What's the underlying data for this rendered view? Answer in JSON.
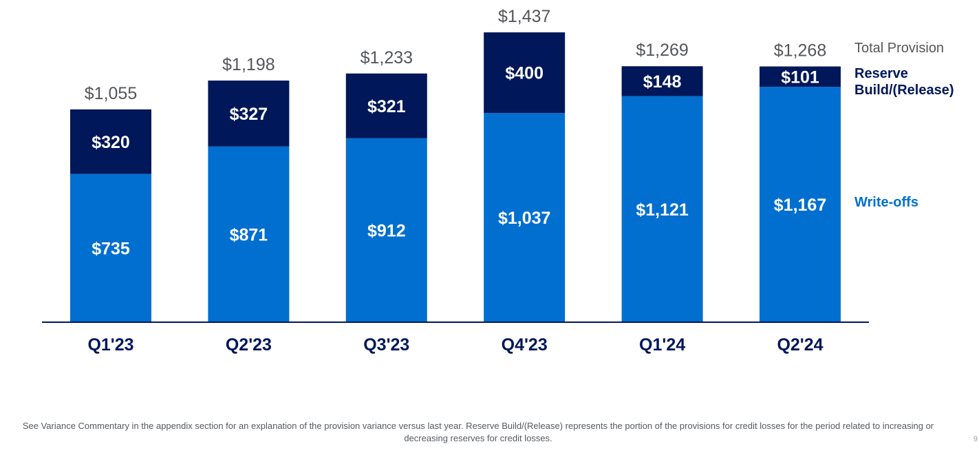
{
  "colors": {
    "write_offs": "#006fcf",
    "reserve": "#00175a",
    "total_label": "#53565a",
    "axis_line": "#00175a",
    "category_label": "#00175a",
    "bar_label": "#ffffff"
  },
  "chart_data": {
    "type": "bar",
    "stacked": true,
    "categories": [
      "Q1'23",
      "Q2'23",
      "Q3'23",
      "Q4'23",
      "Q1'24",
      "Q2'24"
    ],
    "series": [
      {
        "key": "write_offs",
        "name": "Write-offs",
        "values": [
          735,
          871,
          912,
          1037,
          1121,
          1167
        ],
        "labels": [
          "$735",
          "$871",
          "$912",
          "$1,037",
          "$1,121",
          "$1,167"
        ]
      },
      {
        "key": "reserve",
        "name": "Reserve Build/(Release)",
        "values": [
          320,
          327,
          321,
          400,
          148,
          101
        ],
        "labels": [
          "$320",
          "$327",
          "$321",
          "$400",
          "$148",
          "$101"
        ]
      }
    ],
    "totals": {
      "name": "Total Provision",
      "values": [
        1055,
        1198,
        1233,
        1437,
        1269,
        1268
      ],
      "labels": [
        "$1,055",
        "$1,198",
        "$1,233",
        "$1,437",
        "$1,269",
        "$1,268"
      ]
    },
    "legend": {
      "placement": "right",
      "total": "Total Provision",
      "reserve_line1": "Reserve",
      "reserve_line2": "Build/(Release)",
      "write_offs": "Write-offs"
    },
    "title": "",
    "xlabel": "",
    "ylabel": "",
    "ylim": [
      0,
      1437
    ],
    "grid": false
  },
  "footnote": "See Variance Commentary in the appendix section for an explanation of the provision variance versus last year. Reserve Build/(Release) represents the portion of the provisions for credit losses for the period related to increasing or decreasing reserves for credit losses.",
  "page_number": "9"
}
